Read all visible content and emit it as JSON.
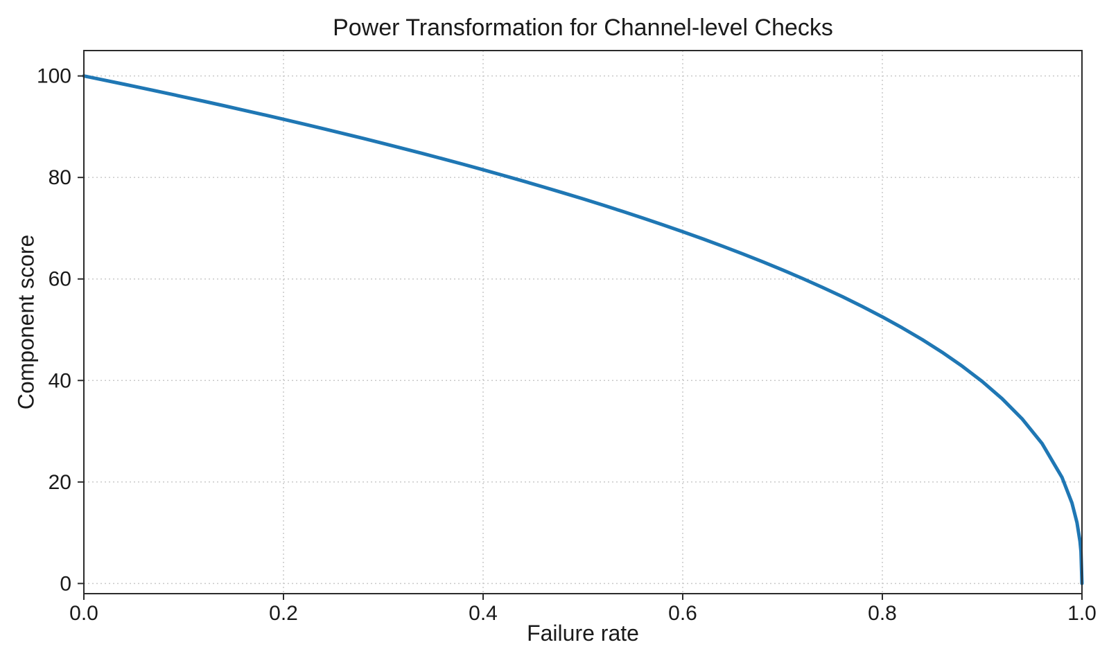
{
  "chart_data": {
    "type": "line",
    "title": "Power Transformation for Channel-level Checks",
    "xlabel": "Failure rate",
    "ylabel": "Component score",
    "xlim": [
      0,
      1
    ],
    "ylim": [
      -2,
      105
    ],
    "x_ticks": [
      0.0,
      0.2,
      0.4,
      0.6,
      0.8,
      1.0
    ],
    "x_tick_labels": [
      "0.0",
      "0.2",
      "0.4",
      "0.6",
      "0.8",
      "1.0"
    ],
    "y_ticks": [
      0,
      20,
      40,
      60,
      80,
      100
    ],
    "y_tick_labels": [
      "0",
      "20",
      "40",
      "60",
      "80",
      "100"
    ],
    "grid": true,
    "grid_style": "dotted",
    "legend_position": "none",
    "series": [
      {
        "name": "component-score-vs-failure-rate",
        "color": "#1f77b4",
        "line_width": 5,
        "x": [
          0,
          0.02,
          0.04,
          0.06,
          0.08,
          0.1,
          0.12,
          0.14,
          0.16,
          0.18,
          0.2,
          0.22,
          0.24,
          0.26,
          0.28,
          0.3,
          0.32,
          0.34,
          0.36,
          0.38,
          0.4,
          0.42,
          0.44,
          0.46,
          0.48,
          0.5,
          0.52,
          0.54,
          0.56,
          0.58,
          0.6,
          0.62,
          0.64,
          0.66,
          0.68,
          0.7,
          0.72,
          0.74,
          0.76,
          0.78,
          0.8,
          0.82,
          0.84,
          0.86,
          0.88,
          0.9,
          0.92,
          0.94,
          0.96,
          0.98,
          0.99,
          0.995,
          0.998,
          0.999,
          1.0
        ],
        "y": [
          100,
          99.19,
          98.38,
          97.56,
          96.72,
          95.87,
          95.02,
          94.15,
          93.26,
          92.37,
          91.46,
          90.54,
          89.6,
          88.65,
          87.69,
          86.7,
          85.7,
          84.69,
          83.65,
          82.6,
          81.52,
          80.42,
          79.3,
          78.15,
          76.98,
          75.79,
          74.56,
          73.3,
          72.01,
          70.68,
          69.31,
          67.91,
          66.45,
          64.95,
          63.4,
          61.78,
          60.1,
          58.34,
          56.51,
          54.57,
          52.53,
          50.36,
          48.05,
          45.55,
          42.82,
          39.81,
          36.41,
          32.45,
          27.59,
          20.91,
          15.85,
          12.01,
          8.33,
          6.31,
          0
        ]
      }
    ],
    "colors": {
      "line": "#1f77b4",
      "grid": "#c9c9c9",
      "spine": "#2b2b2b",
      "text": "#1a1a1a",
      "background": "#ffffff"
    }
  }
}
